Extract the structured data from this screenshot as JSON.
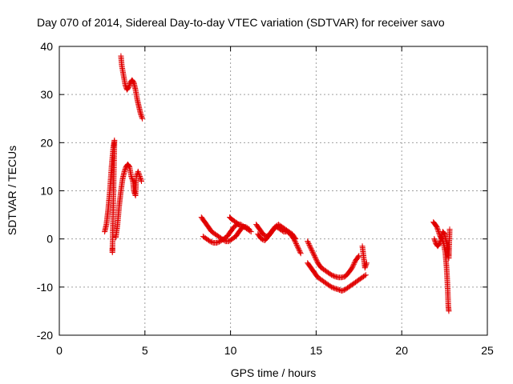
{
  "chart_data": {
    "type": "scatter",
    "title": "Day 070 of 2014, Sidereal Day-to-day VTEC variation (SDTVAR) for receiver savo",
    "xlabel": "GPS time / hours",
    "ylabel": "SDTVAR / TECUs",
    "xlim": [
      0,
      25
    ],
    "ylim": [
      -20,
      40
    ],
    "xticks": [
      "0",
      "5",
      "10",
      "15",
      "20",
      "25"
    ],
    "yticks": [
      "-20",
      "-10",
      "0",
      "10",
      "20",
      "30",
      "40"
    ],
    "grid": true,
    "marker": "+",
    "color": "#e00000",
    "series": [
      {
        "name": "SDTVAR",
        "segments": [
          [
            [
              2.65,
              1.5
            ],
            [
              2.75,
              3
            ],
            [
              2.85,
              6
            ],
            [
              2.95,
              10
            ],
            [
              3.05,
              15
            ],
            [
              3.15,
              19
            ],
            [
              3.22,
              20.5
            ],
            [
              3.1,
              -2.8
            ],
            [
              3.1,
              -2
            ]
          ],
          [
            [
              3.3,
              0.3
            ],
            [
              3.4,
              3
            ],
            [
              3.5,
              7
            ],
            [
              3.6,
              10
            ],
            [
              3.7,
              12.5
            ],
            [
              3.8,
              14
            ],
            [
              3.9,
              15
            ],
            [
              4.0,
              15.5
            ],
            [
              4.1,
              15
            ],
            [
              4.2,
              13
            ],
            [
              4.3,
              12
            ],
            [
              4.35,
              10
            ],
            [
              4.45,
              9
            ],
            [
              4.5,
              13
            ],
            [
              4.6,
              14
            ],
            [
              4.7,
              13
            ],
            [
              4.8,
              12
            ]
          ],
          [
            [
              3.6,
              38
            ],
            [
              3.65,
              36
            ],
            [
              3.75,
              34
            ],
            [
              3.85,
              32
            ],
            [
              3.95,
              31
            ],
            [
              4.05,
              31.5
            ],
            [
              4.15,
              32.5
            ],
            [
              4.25,
              33
            ],
            [
              4.35,
              32.5
            ],
            [
              4.45,
              31
            ],
            [
              4.55,
              29
            ],
            [
              4.65,
              27.5
            ],
            [
              4.75,
              26
            ],
            [
              4.85,
              25
            ]
          ],
          [
            [
              8.3,
              4.5
            ],
            [
              8.5,
              3.5
            ],
            [
              8.7,
              2.5
            ],
            [
              8.9,
              1.5
            ],
            [
              9.1,
              1
            ],
            [
              9.3,
              0.5
            ],
            [
              9.5,
              0
            ],
            [
              9.7,
              -0.5
            ],
            [
              9.9,
              -0.5
            ],
            [
              10.1,
              0
            ],
            [
              10.3,
              0.5
            ],
            [
              10.5,
              1.5
            ],
            [
              10.7,
              2.5
            ],
            [
              10.9,
              2.5
            ],
            [
              11.1,
              2
            ]
          ],
          [
            [
              8.4,
              0.5
            ],
            [
              8.6,
              0
            ],
            [
              8.8,
              -0.5
            ],
            [
              9.0,
              -0.8
            ],
            [
              9.2,
              -0.8
            ],
            [
              9.4,
              -0.5
            ],
            [
              9.6,
              0
            ],
            [
              9.8,
              0.5
            ],
            [
              10.0,
              1.5
            ],
            [
              10.2,
              2.5
            ],
            [
              10.4,
              3
            ],
            [
              10.6,
              3
            ],
            [
              10.8,
              2.5
            ],
            [
              11.0,
              2
            ],
            [
              11.2,
              1.5
            ]
          ],
          [
            [
              9.95,
              4.5
            ],
            [
              10.1,
              4
            ],
            [
              10.3,
              3.5
            ],
            [
              10.5,
              3
            ]
          ],
          [
            [
              11.5,
              3
            ],
            [
              11.7,
              2
            ],
            [
              11.9,
              1
            ],
            [
              12.1,
              0.5
            ],
            [
              12.3,
              1
            ],
            [
              12.5,
              2
            ],
            [
              12.7,
              2.5
            ],
            [
              12.9,
              2
            ],
            [
              13.1,
              1.5
            ],
            [
              13.3,
              1.5
            ],
            [
              13.5,
              1
            ],
            [
              13.7,
              0
            ],
            [
              13.9,
              -1.5
            ],
            [
              14.1,
              -3
            ]
          ],
          [
            [
              11.6,
              1
            ],
            [
              11.8,
              0
            ],
            [
              12.0,
              -0.3
            ],
            [
              12.2,
              0.5
            ],
            [
              12.4,
              1.5
            ],
            [
              12.6,
              2.5
            ],
            [
              12.8,
              3
            ],
            [
              13.0,
              2.5
            ],
            [
              13.2,
              2
            ],
            [
              13.4,
              1.5
            ],
            [
              13.6,
              1
            ],
            [
              13.8,
              0
            ]
          ],
          [
            [
              14.5,
              -0.5
            ],
            [
              14.7,
              -2
            ],
            [
              14.9,
              -3.5
            ],
            [
              15.1,
              -5
            ],
            [
              15.3,
              -6
            ],
            [
              15.5,
              -6.5
            ],
            [
              15.7,
              -7
            ],
            [
              15.9,
              -7.5
            ],
            [
              16.1,
              -7.8
            ],
            [
              16.3,
              -8
            ],
            [
              16.5,
              -8
            ],
            [
              16.7,
              -7.8
            ],
            [
              16.9,
              -7
            ],
            [
              17.1,
              -6
            ],
            [
              17.3,
              -4.5
            ],
            [
              17.5,
              -3.5
            ]
          ],
          [
            [
              14.5,
              -5
            ],
            [
              14.7,
              -6
            ],
            [
              14.9,
              -7
            ],
            [
              15.1,
              -8
            ],
            [
              15.3,
              -8.5
            ],
            [
              15.5,
              -9
            ],
            [
              15.7,
              -9.5
            ],
            [
              15.9,
              -10
            ],
            [
              16.1,
              -10.3
            ],
            [
              16.3,
              -10.5
            ],
            [
              16.5,
              -10.8
            ],
            [
              16.7,
              -10.5
            ],
            [
              16.9,
              -10
            ],
            [
              17.1,
              -9.5
            ],
            [
              17.3,
              -9
            ],
            [
              17.5,
              -8.5
            ],
            [
              17.7,
              -8
            ],
            [
              17.9,
              -7.5
            ]
          ],
          [
            [
              17.7,
              -1.5
            ],
            [
              17.85,
              -6
            ],
            [
              17.95,
              -5
            ]
          ],
          [
            [
              21.85,
              3.5
            ],
            [
              21.95,
              3
            ],
            [
              22.05,
              2.5
            ],
            [
              22.15,
              1.5
            ],
            [
              22.25,
              0.5
            ],
            [
              22.35,
              0
            ],
            [
              22.45,
              -1
            ],
            [
              22.55,
              -3
            ],
            [
              22.62,
              -6
            ],
            [
              22.68,
              -10
            ],
            [
              22.72,
              -14
            ],
            [
              22.75,
              -15
            ]
          ],
          [
            [
              21.9,
              0
            ],
            [
              22.0,
              -1
            ],
            [
              22.1,
              -1.5
            ],
            [
              22.2,
              -1
            ],
            [
              22.3,
              0
            ],
            [
              22.4,
              1.5
            ],
            [
              22.5,
              1
            ],
            [
              22.6,
              -0.5
            ],
            [
              22.7,
              -2
            ],
            [
              22.75,
              -4
            ],
            [
              22.8,
              2
            ]
          ]
        ]
      }
    ]
  }
}
